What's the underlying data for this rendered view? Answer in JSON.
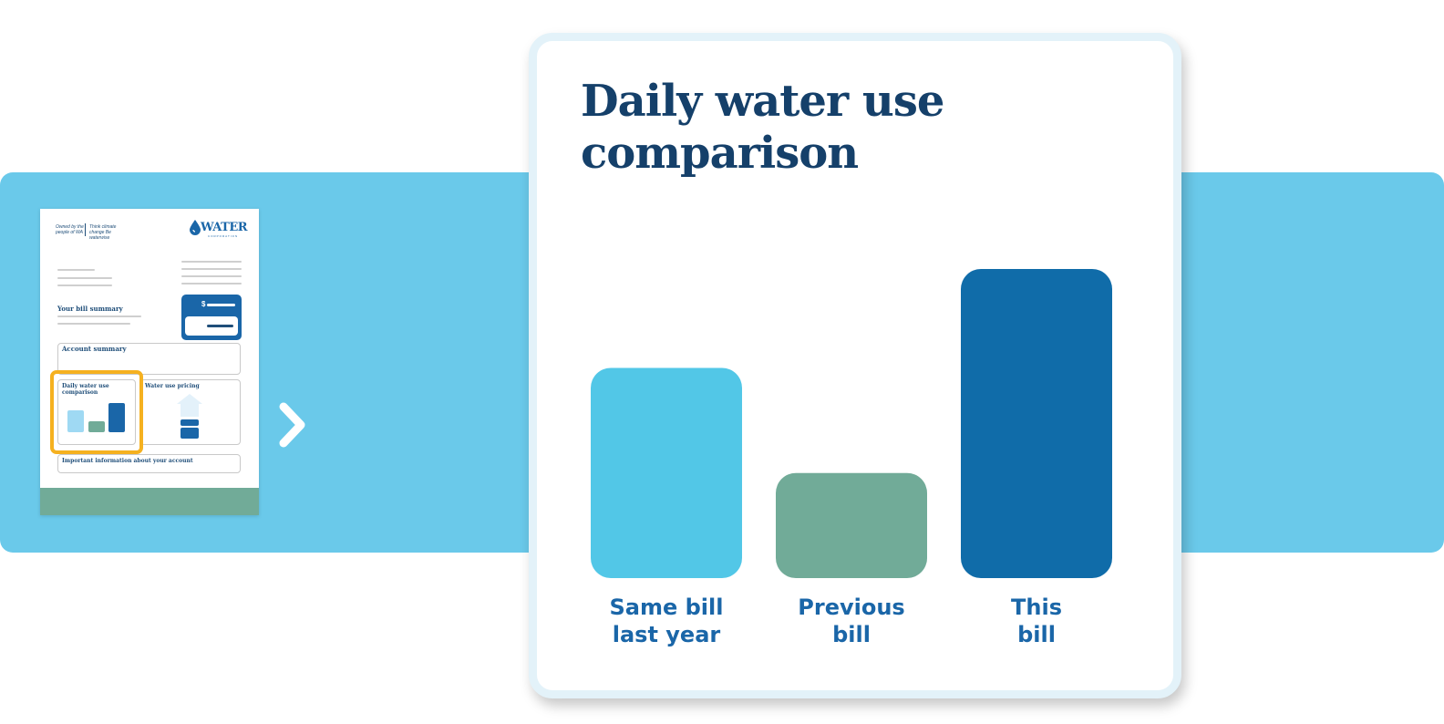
{
  "bill_thumbnail": {
    "header_left": "Owned by the people of WA",
    "header_tagline": "Think climate change Be waterwise",
    "logo": "WATER",
    "logo_sub": "CORPORATION",
    "bill_summary_label": "Your bill summary",
    "currency_symbol": "$",
    "account_summary_label": "Account summary",
    "daily_use_label": "Daily water use comparison",
    "pricing_label": "Water use pricing",
    "important_info_label": "Important information about your account",
    "colors": {
      "accent": "#1a66a8",
      "footer": "#71ab98",
      "highlight": "#f5b120"
    }
  },
  "chevron_icon": "chevron-right-icon",
  "card": {
    "title": "Daily water use comparison"
  },
  "chart_data": {
    "type": "bar",
    "title": "Daily water use comparison",
    "categories": [
      "Same bill last year",
      "Previous bill",
      "This bill"
    ],
    "category_lines": [
      [
        "Same bill",
        "last year"
      ],
      [
        "Previous",
        "bill"
      ],
      [
        "This",
        "bill"
      ]
    ],
    "values": [
      0.68,
      0.34,
      1.0
    ],
    "colors": [
      "#52c7e7",
      "#71ab98",
      "#106ca9"
    ],
    "ylim": [
      0,
      1
    ],
    "grid": false,
    "legend": "none"
  }
}
